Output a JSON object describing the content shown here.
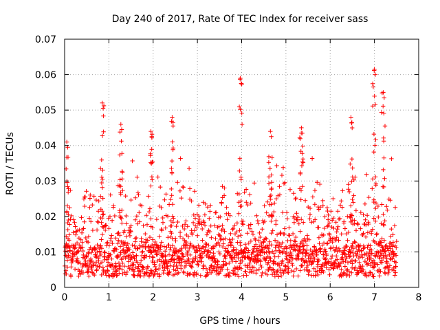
{
  "chart_data": {
    "type": "scatter",
    "title": "Day 240 of 2017, Rate Of TEC Index for receiver sass",
    "xlabel": "GPS time / hours",
    "ylabel": "ROTI / TECUs",
    "xlim": [
      0,
      8
    ],
    "ylim": [
      0,
      0.07
    ],
    "x_ticks": [
      0,
      1,
      2,
      3,
      4,
      5,
      6,
      7,
      8
    ],
    "y_ticks": [
      0,
      0.01,
      0.02,
      0.03,
      0.04,
      0.05,
      0.06,
      0.07
    ],
    "x_tick_labels": [
      "0",
      "1",
      "2",
      "3",
      "4",
      "5",
      "6",
      "7",
      "8"
    ],
    "y_tick_labels": [
      "0",
      "0.01",
      "0.02",
      "0.03",
      "0.04",
      "0.05",
      "0.06",
      "0.07"
    ],
    "grid": true,
    "marker": "+",
    "series": [
      {
        "name": "ROTI",
        "color": "#ff0000",
        "x_range": [
          0,
          7.5
        ],
        "sample_count": 1800,
        "notable_peaks": [
          {
            "x": 0.05,
            "y": 0.041
          },
          {
            "x": 0.85,
            "y": 0.052
          },
          {
            "x": 1.27,
            "y": 0.046
          },
          {
            "x": 1.95,
            "y": 0.044
          },
          {
            "x": 2.43,
            "y": 0.048
          },
          {
            "x": 3.97,
            "y": 0.059
          },
          {
            "x": 4.65,
            "y": 0.044
          },
          {
            "x": 5.35,
            "y": 0.045
          },
          {
            "x": 6.47,
            "y": 0.048
          },
          {
            "x": 7.0,
            "y": 0.0615
          },
          {
            "x": 7.2,
            "y": 0.055
          }
        ]
      }
    ]
  }
}
